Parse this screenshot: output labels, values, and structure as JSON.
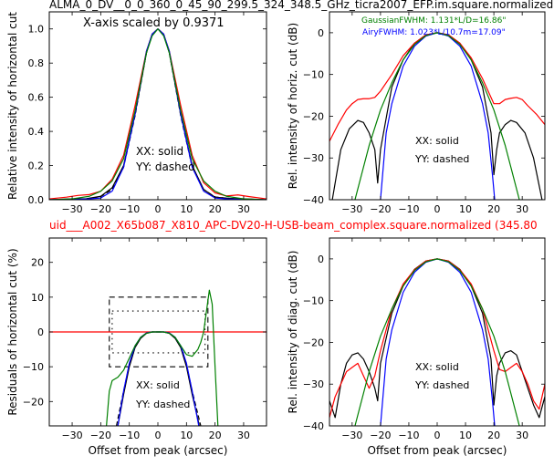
{
  "figure": {
    "top_title": "ALMA_0_DV__0_0_360_0_45_90_299.5_324_348.5_GHz_ticra2007_EFP.im.square.normalized",
    "mid_title": "uid___A002_X65b087_X810_APC-DV20-H-USB-beam_complex.square.normalized (345.80",
    "mid_title_color": "#ff0000"
  },
  "chart_data": [
    {
      "id": "p1",
      "type": "line",
      "ylabel": "Relative intensity of horizontal cut",
      "xlabel": "",
      "xlim": [
        -38,
        38
      ],
      "ylim": [
        0,
        1.1
      ],
      "xticks": [
        -30,
        -20,
        -10,
        0,
        10,
        20,
        30
      ],
      "yticks": [
        0.0,
        0.2,
        0.4,
        0.6,
        0.8,
        1.0
      ],
      "ytick_labels": [
        "0.0",
        "0.2",
        "0.4",
        "0.6",
        "0.8",
        "1.0"
      ],
      "annotations": [
        "X-axis scaled by 0.9371",
        "XX: solid",
        "YY: dashed"
      ],
      "series": [
        {
          "color": "#000000",
          "style": "solid",
          "x": [
            -38,
            -30,
            -25,
            -20,
            -16,
            -12,
            -8,
            -4,
            -2,
            0,
            2,
            4,
            8,
            12,
            16,
            20,
            25,
            30,
            38
          ],
          "y": [
            0,
            0.005,
            0.006,
            0.02,
            0.07,
            0.2,
            0.5,
            0.86,
            0.97,
            1.0,
            0.97,
            0.86,
            0.5,
            0.2,
            0.06,
            0.015,
            0.008,
            0.005,
            0
          ]
        },
        {
          "color": "#000000",
          "style": "dashed",
          "x": [
            -38,
            -30,
            -25,
            -20,
            -16,
            -12,
            -8,
            -4,
            -2,
            0,
            2,
            4,
            8,
            12,
            16,
            20,
            25,
            30,
            38
          ],
          "y": [
            0,
            0.004,
            0.005,
            0.018,
            0.06,
            0.19,
            0.49,
            0.86,
            0.97,
            1.0,
            0.97,
            0.86,
            0.49,
            0.19,
            0.06,
            0.016,
            0.007,
            0.004,
            0
          ]
        },
        {
          "color": "#ff0000",
          "style": "solid",
          "x": [
            -38,
            -32,
            -28,
            -24,
            -20,
            -16,
            -12,
            -8,
            -4,
            -2,
            0,
            2,
            4,
            8,
            12,
            16,
            20,
            24,
            28,
            32,
            38
          ],
          "y": [
            0.005,
            0.015,
            0.025,
            0.03,
            0.05,
            0.12,
            0.26,
            0.55,
            0.87,
            0.97,
            1.0,
            0.97,
            0.87,
            0.55,
            0.26,
            0.1,
            0.04,
            0.022,
            0.028,
            0.018,
            0.005
          ]
        },
        {
          "color": "#0000ff",
          "style": "solid",
          "x": [
            -38,
            -30,
            -24,
            -20,
            -16,
            -12,
            -8,
            -4,
            -2,
            0,
            2,
            4,
            8,
            12,
            16,
            20,
            24,
            30,
            38
          ],
          "y": [
            0,
            0.002,
            0.005,
            0.01,
            0.05,
            0.19,
            0.5,
            0.87,
            0.97,
            1.0,
            0.97,
            0.87,
            0.5,
            0.19,
            0.05,
            0.01,
            0.005,
            0.002,
            0
          ]
        },
        {
          "color": "#008000",
          "style": "solid",
          "x": [
            -38,
            -30,
            -24,
            -20,
            -16,
            -12,
            -8,
            -4,
            -2,
            0,
            2,
            4,
            8,
            12,
            16,
            20,
            24,
            30,
            38
          ],
          "y": [
            0,
            0.005,
            0.02,
            0.05,
            0.11,
            0.24,
            0.52,
            0.86,
            0.96,
            1.0,
            0.96,
            0.86,
            0.52,
            0.24,
            0.11,
            0.05,
            0.02,
            0.005,
            0
          ]
        }
      ]
    },
    {
      "id": "p2",
      "type": "line",
      "ylabel": "Rel. intensity of horiz. cut (dB)",
      "xlabel": "",
      "xlim": [
        -38,
        38
      ],
      "ylim": [
        -40,
        5
      ],
      "xticks": [
        -30,
        -20,
        -10,
        0,
        10,
        20,
        30
      ],
      "yticks": [
        -40,
        -30,
        -20,
        -10,
        0
      ],
      "ytick_labels": [
        "−40",
        "−30",
        "−20",
        "−10",
        "0"
      ],
      "annotations": [
        "GaussianFWHM: 1.131*L/D=16.86\"",
        "AiryFWHM: 1.023*L/10.7m=17.09\"",
        "XX: solid",
        "YY: dashed"
      ],
      "annotation_colors": [
        "#008000",
        "#0000ff",
        "#000000",
        "#000000"
      ],
      "series": [
        {
          "color": "#000000",
          "style": "solid",
          "x": [
            -37,
            -34,
            -31,
            -28,
            -26,
            -24,
            -22,
            -21,
            -20,
            -16,
            -12,
            -8,
            -4,
            0,
            4,
            8,
            12,
            16,
            19,
            20,
            21,
            22,
            24,
            26,
            28,
            31,
            34,
            37
          ],
          "y": [
            -40,
            -28,
            -23,
            -21,
            -21.5,
            -24,
            -28,
            -36,
            -28,
            -13,
            -6.5,
            -2.5,
            -0.5,
            0,
            -0.5,
            -2.5,
            -6.5,
            -13,
            -24,
            -34,
            -28,
            -24,
            -22,
            -21,
            -21.5,
            -24,
            -30,
            -40
          ]
        },
        {
          "color": "#ff0000",
          "style": "solid",
          "x": [
            -38,
            -35,
            -32,
            -30,
            -28,
            -26,
            -24,
            -22,
            -20,
            -16,
            -12,
            -8,
            -4,
            0,
            4,
            8,
            12,
            16,
            18,
            20,
            22,
            24,
            26,
            28,
            30,
            32,
            35,
            38
          ],
          "y": [
            -26,
            -22,
            -18.5,
            -17,
            -16,
            -15.8,
            -15.8,
            -15.5,
            -14,
            -10,
            -5.5,
            -2.5,
            -0.5,
            0,
            -0.5,
            -2.5,
            -6,
            -11,
            -14,
            -17,
            -17,
            -16,
            -15.7,
            -15.5,
            -16,
            -17.5,
            -19.5,
            -22
          ]
        },
        {
          "color": "#0000ff",
          "style": "solid",
          "x": [
            -20,
            -18,
            -16,
            -12,
            -8,
            -4,
            0,
            4,
            8,
            12,
            16,
            18,
            19.5,
            20.3
          ],
          "y": [
            -40,
            -24,
            -17,
            -8,
            -3.2,
            -0.8,
            0,
            -0.8,
            -3.2,
            -8,
            -17,
            -24,
            -34,
            -40
          ]
        },
        {
          "color": "#008000",
          "style": "solid",
          "x": [
            -29,
            -24,
            -20,
            -16,
            -12,
            -8,
            -4,
            0,
            4,
            8,
            12,
            16,
            20,
            24,
            29
          ],
          "y": [
            -40,
            -27,
            -18.5,
            -12,
            -6.5,
            -2.8,
            -0.7,
            0,
            -0.7,
            -2.8,
            -6.5,
            -12,
            -18.5,
            -27,
            -40
          ]
        }
      ]
    },
    {
      "id": "p3",
      "type": "line",
      "ylabel": "Residuals of horizontal cut (%)",
      "xlabel": "Offset from peak (arcsec)",
      "xlim": [
        -38,
        38
      ],
      "ylim": [
        -27,
        27
      ],
      "xticks": [
        -30,
        -20,
        -10,
        0,
        10,
        20,
        30
      ],
      "yticks": [
        -20,
        -10,
        0,
        10,
        20
      ],
      "ytick_labels": [
        "−20",
        "−10",
        "0",
        "10",
        "20"
      ],
      "annotations": [
        "XX: solid",
        "YY: dashed"
      ],
      "series": [
        {
          "color": "#ff0000",
          "style": "solid",
          "x": [
            -38,
            38
          ],
          "y": [
            0,
            0
          ]
        },
        {
          "color": "#000000",
          "style": "solid",
          "x": [
            -14,
            -12,
            -10,
            -8,
            -6,
            -4,
            -2,
            0,
            2,
            4,
            6,
            8,
            10,
            12,
            14.5
          ],
          "y": [
            -27,
            -18,
            -10,
            -4.5,
            -1.8,
            -0.4,
            0,
            0,
            0,
            -0.4,
            -1.8,
            -4.5,
            -10,
            -18,
            -27
          ]
        },
        {
          "color": "#000000",
          "style": "dashed",
          "x": [
            -14.5,
            -12,
            -10,
            -8,
            -6,
            -4,
            -2,
            0,
            2,
            4,
            6,
            8,
            10,
            12,
            15
          ],
          "y": [
            -27,
            -17,
            -9.5,
            -4.2,
            -1.6,
            -0.3,
            0,
            0,
            0,
            -0.3,
            -1.6,
            -4.2,
            -9.5,
            -17,
            -27
          ]
        },
        {
          "color": "#0000ff",
          "style": "solid",
          "x": [
            -14,
            -12,
            -10,
            -8,
            -6,
            -4,
            -2,
            0,
            2,
            4,
            6,
            8,
            10,
            12,
            14.3
          ],
          "y": [
            -27,
            -17,
            -9,
            -4,
            -1.5,
            -0.3,
            0,
            0,
            0,
            -0.3,
            -1.5,
            -4,
            -9,
            -17,
            -27
          ]
        },
        {
          "color": "#008000",
          "style": "solid",
          "x": [
            -18,
            -17,
            -16,
            -14,
            -12,
            -10,
            -8,
            -6,
            -4,
            -2,
            0,
            2,
            4,
            6,
            8,
            10,
            12,
            14,
            15,
            16,
            17,
            18,
            19,
            20,
            21
          ],
          "y": [
            -27,
            -17,
            -14,
            -13,
            -11,
            -7.5,
            -4,
            -1.5,
            -0.4,
            0,
            0,
            0,
            -0.4,
            -1.5,
            -4,
            -6.5,
            -7,
            -5,
            -3,
            0,
            6,
            12,
            8,
            -10,
            -27
          ]
        }
      ],
      "boxes": [
        {
          "style": "dashed",
          "x0": -17,
          "x1": 17.5,
          "y0": -10,
          "y1": 10
        },
        {
          "style": "dotted",
          "x0": -16,
          "x1": 16.5,
          "y0": -6,
          "y1": 6
        }
      ]
    },
    {
      "id": "p4",
      "type": "line",
      "ylabel": "Rel. intensity of diag. cut (dB)",
      "xlabel": "Offset from peak (arcsec)",
      "xlim": [
        -38,
        38
      ],
      "ylim": [
        -40,
        5
      ],
      "xticks": [
        -30,
        -20,
        -10,
        0,
        10,
        20,
        30
      ],
      "yticks": [
        -40,
        -30,
        -20,
        -10,
        0
      ],
      "ytick_labels": [
        "−40",
        "−30",
        "−20",
        "−10",
        "0"
      ],
      "annotations": [
        "XX: solid",
        "YY: dashed"
      ],
      "series": [
        {
          "color": "#000000",
          "style": "solid",
          "x": [
            -38,
            -36,
            -34,
            -32,
            -30,
            -28,
            -26,
            -24,
            -22,
            -21,
            -20,
            -16,
            -12,
            -8,
            -4,
            0,
            4,
            8,
            12,
            16,
            19,
            20,
            21,
            22,
            24,
            26,
            28,
            30,
            32,
            34,
            36,
            38
          ],
          "y": [
            -34,
            -38,
            -30,
            -25,
            -23,
            -22.5,
            -24,
            -27,
            -31,
            -34,
            -25,
            -13,
            -6.5,
            -2.5,
            -0.5,
            0,
            -0.5,
            -2.5,
            -6.5,
            -13,
            -24,
            -35,
            -28,
            -25,
            -22.5,
            -22,
            -23,
            -27,
            -31,
            -35,
            -38,
            -33
          ]
        },
        {
          "color": "#ff0000",
          "style": "solid",
          "x": [
            -38,
            -36,
            -34,
            -32,
            -30,
            -28,
            -26,
            -24,
            -22,
            -20,
            -16,
            -12,
            -8,
            -4,
            0,
            4,
            8,
            12,
            16,
            18,
            20,
            22,
            24,
            26,
            28,
            30,
            32,
            34,
            36,
            38
          ],
          "y": [
            -38,
            -33,
            -30,
            -27,
            -26,
            -25,
            -28,
            -31,
            -28,
            -22,
            -12,
            -6,
            -2.6,
            -0.5,
            0,
            -0.5,
            -2.6,
            -6,
            -12,
            -17,
            -22,
            -26.5,
            -27,
            -26,
            -25,
            -27,
            -30,
            -34,
            -36,
            -30
          ]
        },
        {
          "color": "#0000ff",
          "style": "solid",
          "x": [
            -20,
            -18,
            -16,
            -12,
            -8,
            -4,
            0,
            4,
            8,
            12,
            16,
            18,
            19.5,
            20.3
          ],
          "y": [
            -40,
            -24,
            -17,
            -8,
            -3.2,
            -0.8,
            0,
            -0.8,
            -3.2,
            -8,
            -17,
            -24,
            -34,
            -40
          ]
        },
        {
          "color": "#008000",
          "style": "solid",
          "x": [
            -29,
            -24,
            -20,
            -16,
            -12,
            -8,
            -4,
            0,
            4,
            8,
            12,
            16,
            20,
            24,
            29
          ],
          "y": [
            -40,
            -27,
            -18.5,
            -12,
            -6.5,
            -2.8,
            -0.7,
            0,
            -0.7,
            -2.8,
            -6.5,
            -12,
            -18.5,
            -27,
            -40
          ]
        }
      ]
    }
  ]
}
